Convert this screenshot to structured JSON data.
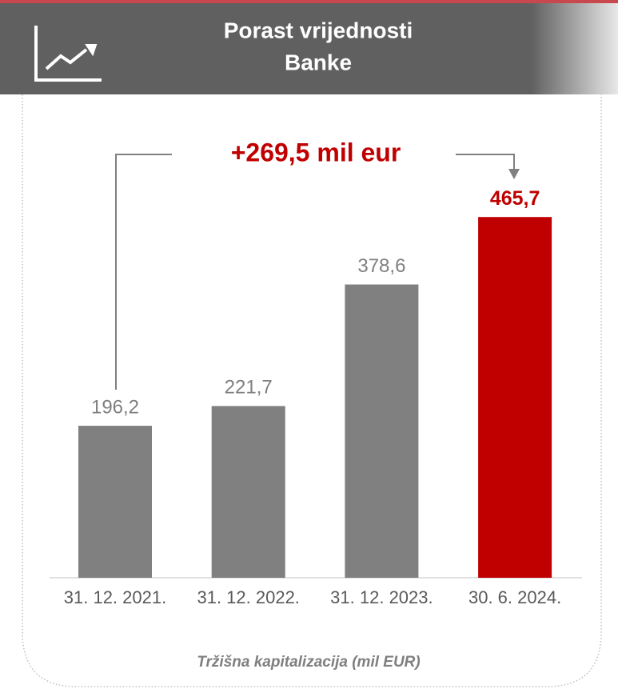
{
  "chart_data": {
    "type": "bar",
    "title": [
      "Porast vrijednosti",
      "Banke"
    ],
    "annotation": "+269,5 mil eur",
    "caption": "Tržišna kapitalizacija (mil EUR)",
    "categories": [
      "31. 12. 2021.",
      "31. 12. 2022.",
      "31. 12. 2023.",
      "30. 6. 2024."
    ],
    "values": [
      196.2,
      221.7,
      378.6,
      465.7
    ],
    "value_labels": [
      "196,2",
      "221,7",
      "378,6",
      "465,7"
    ],
    "colors": [
      "#808080",
      "#808080",
      "#808080",
      "#c00000"
    ]
  }
}
